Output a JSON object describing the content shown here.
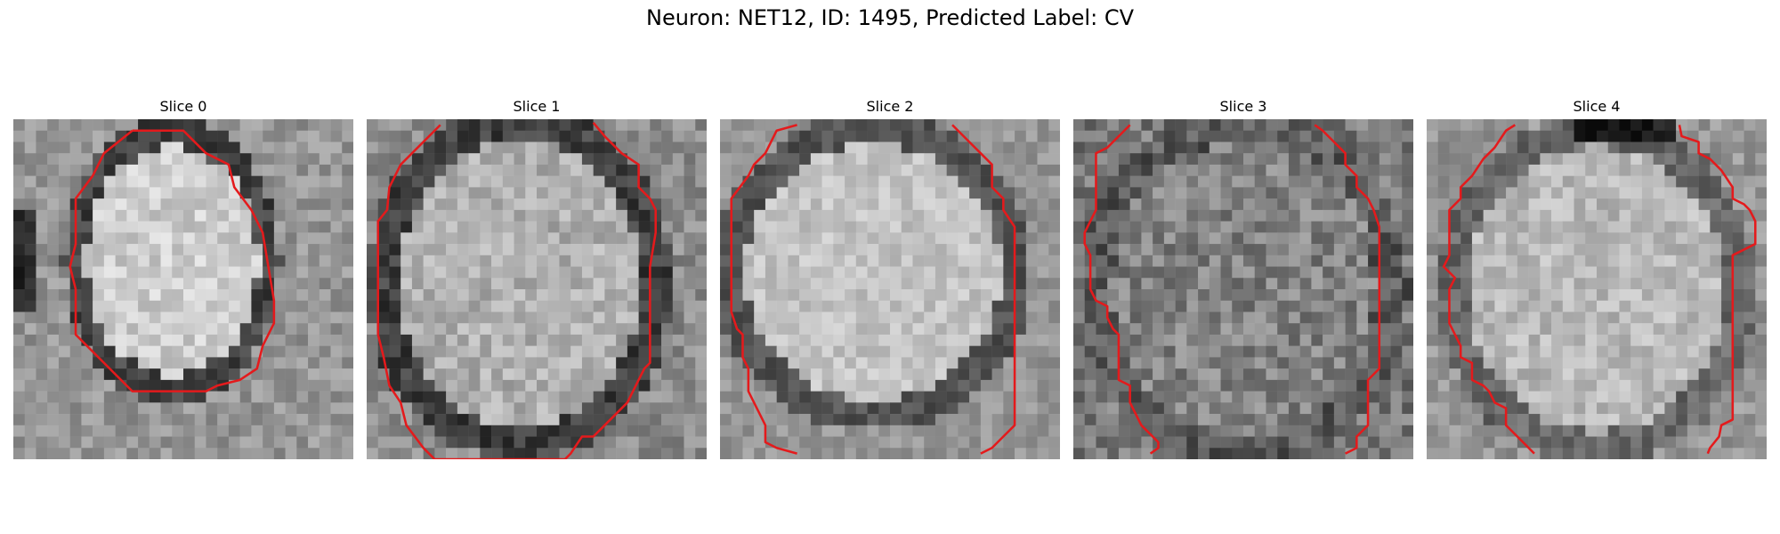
{
  "figure": {
    "title": "Neuron: NET12, ID: 1495, Predicted Label: CV",
    "contour_color": "#e41a1c"
  },
  "panels": [
    {
      "title": "Slice 0"
    },
    {
      "title": "Slice 1"
    },
    {
      "title": "Slice 2"
    },
    {
      "title": "Slice 3"
    },
    {
      "title": "Slice 4"
    }
  ]
}
